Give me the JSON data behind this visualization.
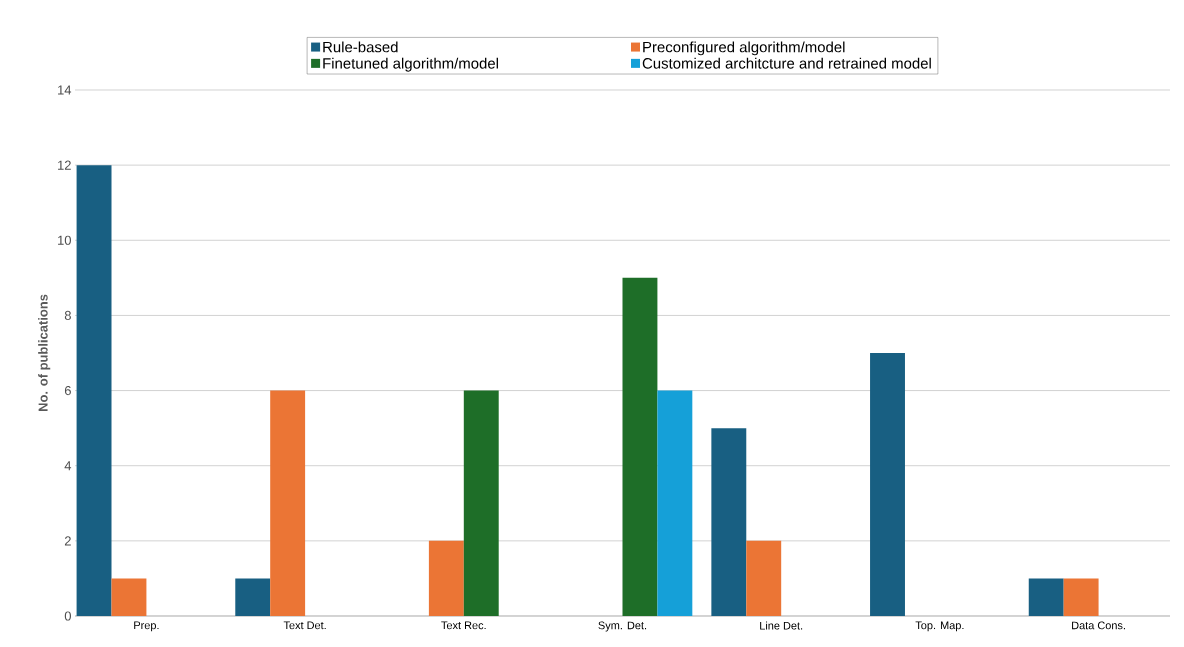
{
  "chart_data": {
    "type": "bar",
    "ylabel": "No. of publications",
    "categories": [
      "Prep.",
      "Text Det.",
      "Text Rec.",
      "Sym. Det.",
      "Line Det.",
      "Top. Map.",
      "Data Cons."
    ],
    "series": [
      {
        "name": "Rule-based",
        "color": "#185f82",
        "values": [
          12,
          1,
          0,
          0,
          5,
          7,
          1
        ]
      },
      {
        "name": "Preconfigured algorithm/model",
        "color": "#eb7535",
        "values": [
          1,
          6,
          2,
          0,
          2,
          0,
          1
        ]
      },
      {
        "name": "Finetuned algorithm/model",
        "color": "#1e6e28",
        "values": [
          0,
          0,
          6,
          9,
          0,
          0,
          0
        ]
      },
      {
        "name": "Customized architcture and retrained model",
        "color": "#15a0d8",
        "values": [
          0,
          0,
          0,
          6,
          0,
          0,
          0
        ]
      }
    ],
    "ylim": [
      0,
      14
    ],
    "yticks": [
      0,
      2,
      4,
      6,
      8,
      10,
      12,
      14
    ],
    "grid": "y",
    "legend": "top"
  }
}
